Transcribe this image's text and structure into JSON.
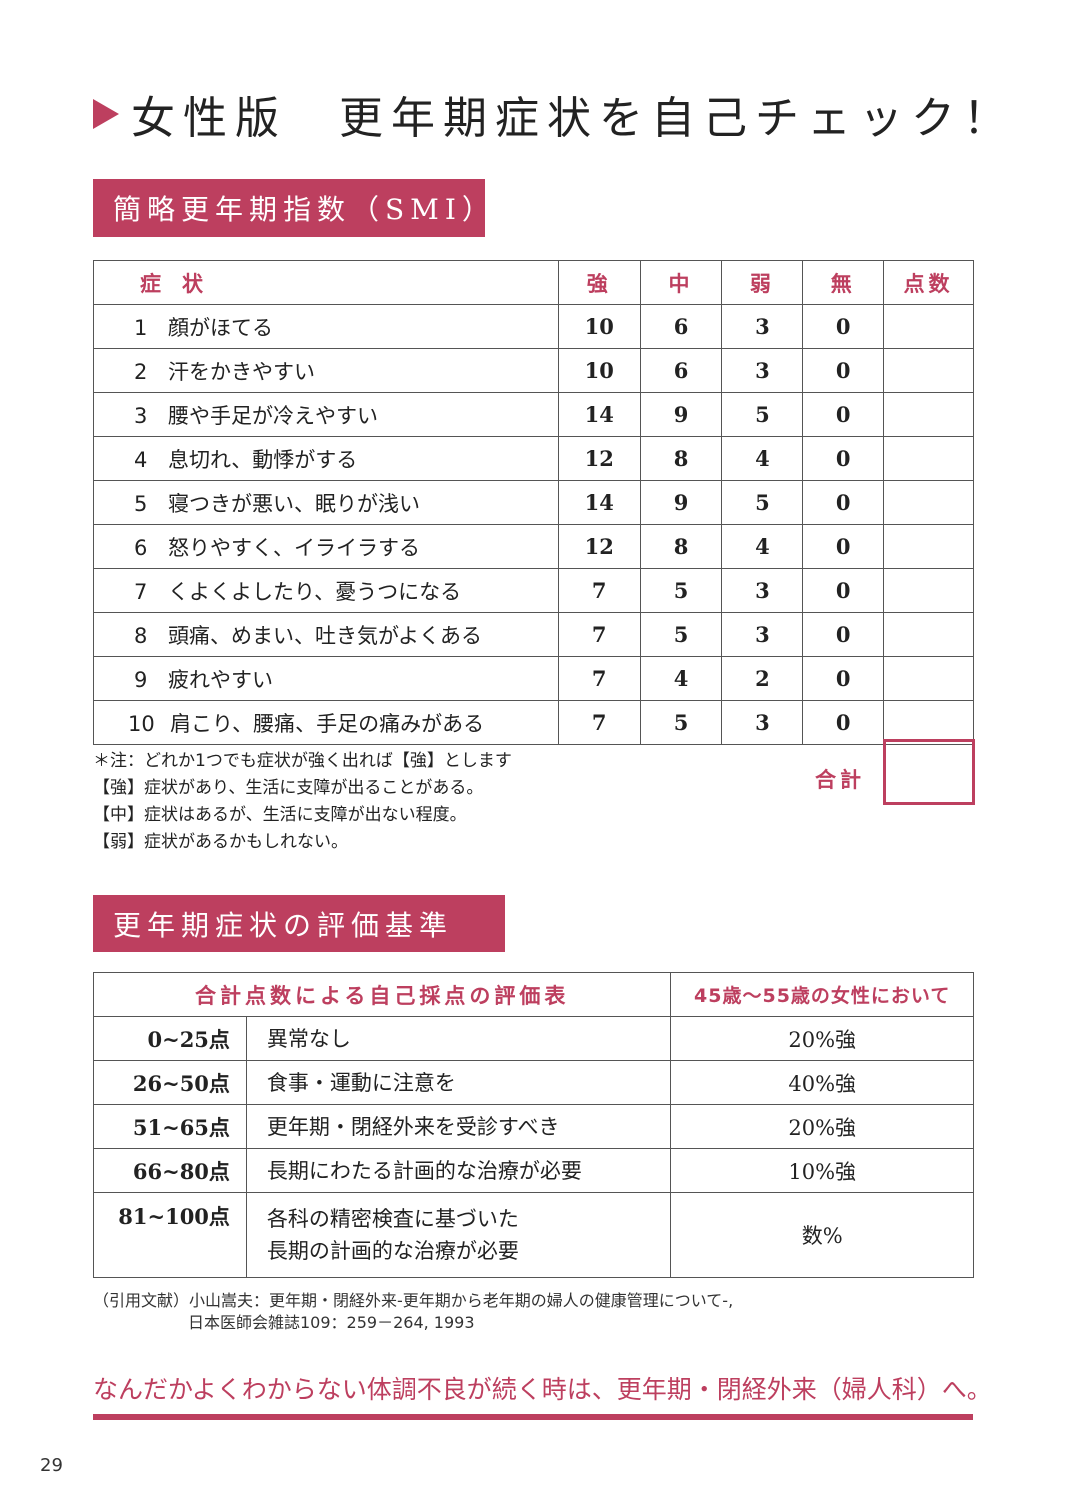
{
  "title": "女性版　更年期症状を自己チェック！",
  "accent_color": "#bd3f5f",
  "smi": {
    "banner": "簡略更年期指数（SMI）",
    "headers": [
      "症　状",
      "強",
      "中",
      "弱",
      "無",
      "点数"
    ],
    "rows": [
      {
        "no": "1",
        "symptom": "顔がほてる",
        "strong": "10",
        "mid": "6",
        "weak": "3",
        "none": "0"
      },
      {
        "no": "2",
        "symptom": "汗をかきやすい",
        "strong": "10",
        "mid": "6",
        "weak": "3",
        "none": "0"
      },
      {
        "no": "3",
        "symptom": "腰や手足が冷えやすい",
        "strong": "14",
        "mid": "9",
        "weak": "5",
        "none": "0"
      },
      {
        "no": "4",
        "symptom": "息切れ、動悸がする",
        "strong": "12",
        "mid": "8",
        "weak": "4",
        "none": "0"
      },
      {
        "no": "5",
        "symptom": "寝つきが悪い、眠りが浅い",
        "strong": "14",
        "mid": "9",
        "weak": "5",
        "none": "0"
      },
      {
        "no": "6",
        "symptom": "怒りやすく、イライラする",
        "strong": "12",
        "mid": "8",
        "weak": "4",
        "none": "0"
      },
      {
        "no": "7",
        "symptom": "くよくよしたり、憂うつになる",
        "strong": "7",
        "mid": "5",
        "weak": "3",
        "none": "0"
      },
      {
        "no": "8",
        "symptom": "頭痛、めまい、吐き気がよくある",
        "strong": "7",
        "mid": "5",
        "weak": "3",
        "none": "0"
      },
      {
        "no": "9",
        "symptom": "疲れやすい",
        "strong": "7",
        "mid": "4",
        "weak": "2",
        "none": "0"
      },
      {
        "no": "10",
        "symptom": "肩こり、腰痛、手足の痛みがある",
        "strong": "7",
        "mid": "5",
        "weak": "3",
        "none": "0"
      }
    ],
    "notes": [
      "＊注：どれか1つでも症状が強く出れば【強】とします",
      "【強】症状があり、生活に支障が出ることがある。",
      "【中】症状はあるが、生活に支障が出ない程度。",
      "【弱】症状があるかもしれない。"
    ],
    "total_label": "合計"
  },
  "criteria": {
    "banner": "更年期症状の評価基準",
    "headers": [
      "合計点数による自己採点の評価表",
      "45歳〜55歳の女性において"
    ],
    "rows": [
      {
        "range": "0~25点",
        "desc": "異常なし",
        "pct": "20%強"
      },
      {
        "range": "26~50点",
        "desc": "食事・運動に注意を",
        "pct": "40%強"
      },
      {
        "range": "51~65点",
        "desc": "更年期・閉経外来を受診すべき",
        "pct": "20%強"
      },
      {
        "range": "66~80点",
        "desc": "長期にわたる計画的な治療が必要",
        "pct": "10%強"
      }
    ],
    "last": {
      "range": "81~100点",
      "desc1": "各科の精密検査に基づいた",
      "desc2": "長期の計画的な治療が必要",
      "pct": "数%"
    }
  },
  "citation": [
    "（引用文献）小山嵩夫：更年期・閉経外来-更年期から老年期の婦人の健康管理について-,",
    "日本医師会雑誌109：259－264, 1993"
  ],
  "message": "なんだかよくわからない体調不良が続く時は、更年期・閉経外来（婦人科）へ。",
  "page_number": "29"
}
